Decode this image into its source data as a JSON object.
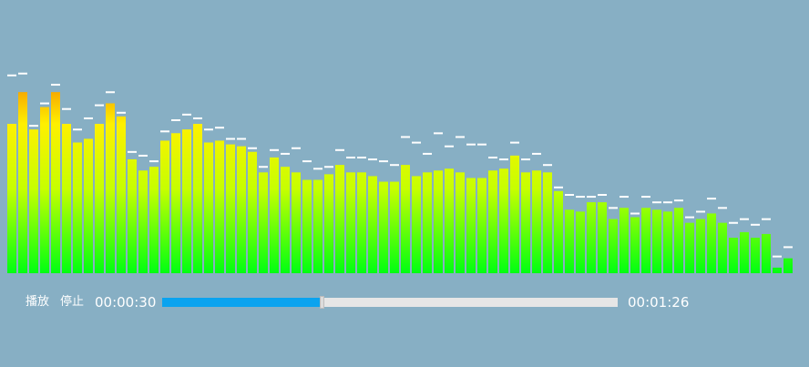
{
  "controls": {
    "play_label": "播放",
    "stop_label": "停止",
    "current_time": "00:00:30",
    "total_time": "00:01:26",
    "progress_fraction": 0.35
  },
  "colors": {
    "background": "#87afc4",
    "bar_bottom": "#00ff12",
    "bar_mid": "#c6ff00",
    "bar_top": "#fff000",
    "bar_peak": "#f5a000",
    "cap": "#ffffff",
    "progress_fill": "#0aa3ef",
    "progress_track": "#e6e6e6"
  },
  "spectrum": {
    "max_level": 1.0,
    "bars": [
      0.8,
      0.97,
      0.77,
      0.89,
      0.97,
      0.8,
      0.7,
      0.72,
      0.8,
      0.91,
      0.84,
      0.61,
      0.55,
      0.57,
      0.71,
      0.75,
      0.77,
      0.8,
      0.7,
      0.71,
      0.69,
      0.68,
      0.65,
      0.54,
      0.62,
      0.57,
      0.54,
      0.5,
      0.5,
      0.53,
      0.58,
      0.54,
      0.54,
      0.52,
      0.49,
      0.49,
      0.58,
      0.52,
      0.54,
      0.55,
      0.56,
      0.54,
      0.51,
      0.51,
      0.55,
      0.56,
      0.63,
      0.54,
      0.55,
      0.54,
      0.44,
      0.34,
      0.33,
      0.38,
      0.38,
      0.29,
      0.35,
      0.3,
      0.35,
      0.34,
      0.33,
      0.35,
      0.27,
      0.29,
      0.32,
      0.27,
      0.19,
      0.22,
      0.19,
      0.21,
      0.03,
      0.08
    ],
    "caps": [
      1.04,
      1.05,
      0.77,
      0.89,
      0.99,
      0.86,
      0.75,
      0.81,
      0.88,
      0.95,
      0.84,
      0.63,
      0.61,
      0.58,
      0.74,
      0.8,
      0.83,
      0.81,
      0.75,
      0.76,
      0.7,
      0.7,
      0.65,
      0.55,
      0.64,
      0.62,
      0.65,
      0.58,
      0.54,
      0.55,
      0.64,
      0.6,
      0.6,
      0.59,
      0.58,
      0.56,
      0.71,
      0.68,
      0.62,
      0.73,
      0.66,
      0.71,
      0.67,
      0.67,
      0.6,
      0.59,
      0.68,
      0.59,
      0.62,
      0.56,
      0.44,
      0.4,
      0.39,
      0.39,
      0.4,
      0.33,
      0.39,
      0.3,
      0.39,
      0.36,
      0.36,
      0.37,
      0.28,
      0.31,
      0.38,
      0.33,
      0.25,
      0.27,
      0.24,
      0.27,
      0.07,
      0.12
    ]
  }
}
